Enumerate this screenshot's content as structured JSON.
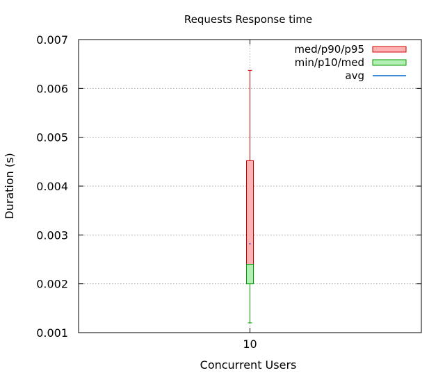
{
  "chart_data": {
    "type": "boxplot",
    "title": "Requests Response time",
    "xlabel": "Concurrent Users",
    "ylabel": "Duration (s)",
    "ylim": [
      0.001,
      0.007
    ],
    "yticks": [
      "0.001",
      "0.002",
      "0.003",
      "0.004",
      "0.005",
      "0.006",
      "0.007"
    ],
    "categories": [
      "10"
    ],
    "grid": true,
    "legend_position": "top-right",
    "legend": [
      {
        "label": "med/p90/p95",
        "fill": "#ffb3b3",
        "stroke": "#cc0000",
        "kind": "box"
      },
      {
        "label": "min/p10/med",
        "fill": "#b3f0b3",
        "stroke": "#009900",
        "kind": "box"
      },
      {
        "label": "avg",
        "stroke": "#0066cc",
        "kind": "line"
      }
    ],
    "series": [
      {
        "category": "10",
        "min": 0.0012,
        "p10": 0.002,
        "median": 0.0024,
        "p90": 0.00452,
        "p95": 0.00637,
        "avg": 0.00282
      }
    ],
    "colors": {
      "upper_box_fill": "#ffb3b3",
      "upper_box_stroke": "#cc0000",
      "lower_box_fill": "#b3f0b3",
      "lower_box_stroke": "#009900",
      "avg": "#0000cc",
      "grid": "#a0a0a0",
      "axis": "#000000"
    }
  }
}
